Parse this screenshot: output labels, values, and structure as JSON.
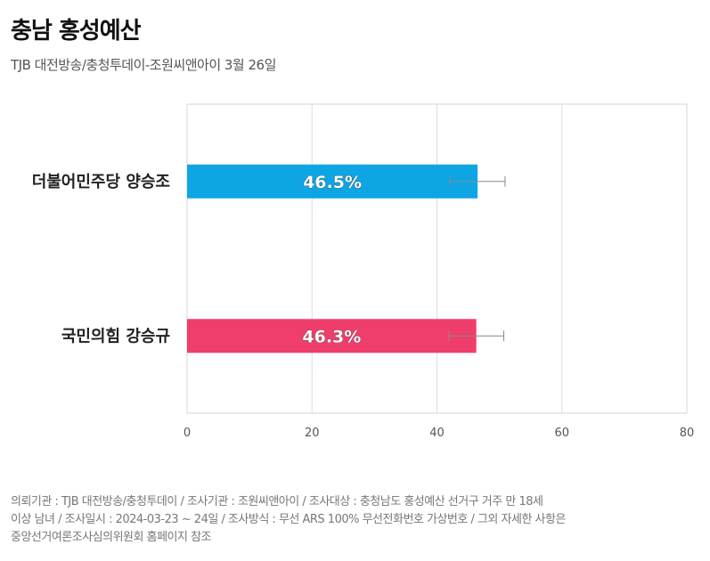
{
  "header": {
    "title": "충남 홍성예산",
    "subtitle": "TJB 대전방송/충청투데이-조원씨앤아이 3월 26일"
  },
  "chart_data": {
    "type": "bar",
    "orientation": "horizontal",
    "categories": [
      "더불어민주당 양승조",
      "국민의힘 강승규"
    ],
    "values": [
      46.5,
      46.3
    ],
    "value_labels": [
      "46.5%",
      "46.3%"
    ],
    "error_bars": [
      [
        42.1,
        50.9
      ],
      [
        41.9,
        50.7
      ]
    ],
    "colors": [
      "#0ea5e4",
      "#ef3e6c"
    ],
    "xlim": [
      0,
      80
    ],
    "xticks": [
      "0",
      "20",
      "40",
      "60",
      "80"
    ],
    "grid": true
  },
  "footer": {
    "lines": [
      "의뢰기관 : TJB 대전방송/충청투데이 / 조사기관 : 조원씨앤아이 / 조사대상 : 충청남도 홍성예산 선거구 거주 만 18세",
      "이상 남녀 / 조사일시 : 2024-03-23 ~ 24일 / 조사방식 : 무선 ARS 100% 무선전화번호 가상번호 / 그외 자세한 사항은",
      "중앙선거여론조사심의위원회 홈페이지 참조"
    ]
  }
}
